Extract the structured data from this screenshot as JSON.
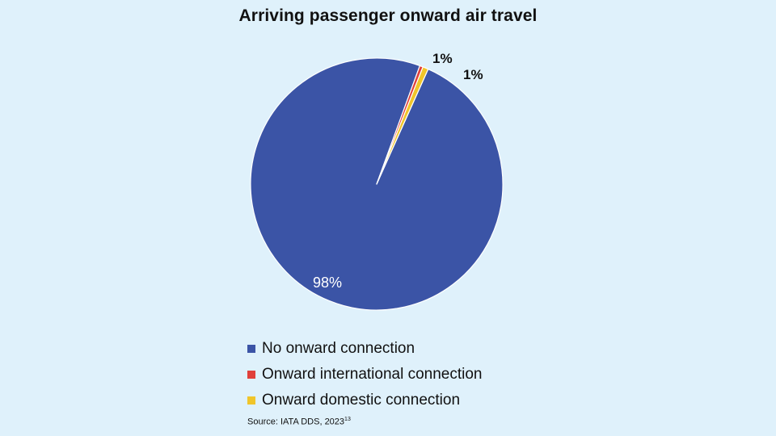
{
  "chart_data": {
    "type": "pie",
    "title": "Arriving passenger onward air travel",
    "slices": [
      {
        "label": "No onward connection",
        "value": 98,
        "data_label": "98%",
        "color": "#3b54a6"
      },
      {
        "label": "Onward international connection",
        "value": 1,
        "data_label": "1%",
        "color": "#e0403a"
      },
      {
        "label": "Onward domestic connection",
        "value": 1,
        "data_label": "1%",
        "color": "#f0c52a"
      }
    ],
    "legend_position": "bottom-left"
  },
  "source": {
    "text": "Source: IATA DDS, 2023",
    "footnote": "13"
  }
}
